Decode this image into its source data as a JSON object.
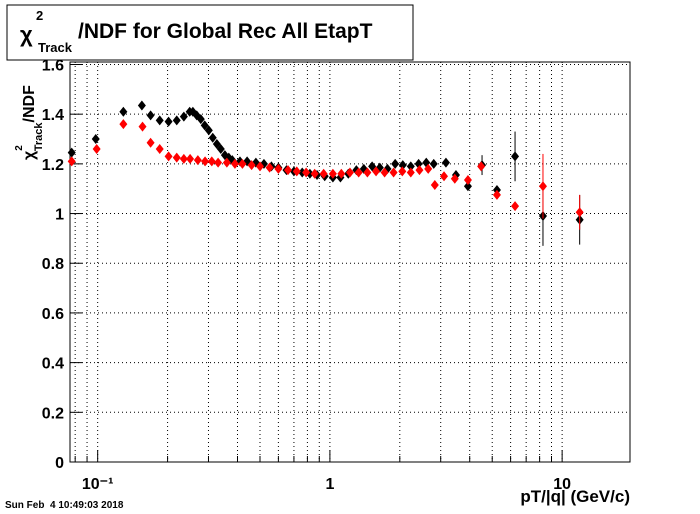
{
  "chart_data": {
    "type": "scatter",
    "title": {
      "symbol": "χ",
      "sup": "2",
      "sub": "Track",
      "text": "/NDF for Global Rec All EtapT"
    },
    "y_label": {
      "symbol": "χ",
      "sup": "2",
      "sub": "Track",
      "text": "/NDF"
    },
    "x_label": "pT/|q| (GeV/c)",
    "footer": "Sun Feb  4 10:49:03 2018",
    "log_x": true,
    "grid": true,
    "xlim": [
      0.076,
      19.6
    ],
    "ylim": [
      0,
      1.61
    ],
    "xticks": [
      {
        "value": 0.1,
        "label": "10⁻¹"
      },
      1,
      10
    ],
    "x_minor_ticks": [
      0.08,
      0.09,
      0.2,
      0.3,
      0.4,
      0.5,
      0.6,
      0.7,
      0.8,
      0.9,
      2,
      3,
      4,
      5,
      6,
      7,
      8,
      9
    ],
    "yticks": [
      0,
      0.2,
      0.4,
      0.6,
      0.8,
      1,
      1.2,
      1.4,
      1.6
    ],
    "series": [
      {
        "color": "#000000",
        "x": [
          0.0773,
          0.0981,
          0.129,
          0.155,
          0.169,
          0.185,
          0.202,
          0.219,
          0.235,
          0.249,
          0.257,
          0.267,
          0.278,
          0.289,
          0.301,
          0.313,
          0.326,
          0.339,
          0.353,
          0.367,
          0.38,
          0.41,
          0.44,
          0.48,
          0.52,
          0.56,
          0.6,
          0.65,
          0.7,
          0.76,
          0.82,
          0.88,
          0.95,
          1.03,
          1.11,
          1.2,
          1.3,
          1.4,
          1.52,
          1.64,
          1.77,
          1.91,
          2.06,
          2.23,
          2.41,
          2.6,
          2.8,
          3.16,
          3.49,
          3.93,
          4.52,
          5.24,
          6.27,
          8.27,
          11.9
        ],
        "values": [
          1.245,
          1.3,
          1.41,
          1.435,
          1.395,
          1.375,
          1.37,
          1.375,
          1.39,
          1.41,
          1.41,
          1.395,
          1.38,
          1.355,
          1.335,
          1.305,
          1.28,
          1.26,
          1.235,
          1.225,
          1.215,
          1.21,
          1.21,
          1.205,
          1.2,
          1.19,
          1.185,
          1.175,
          1.17,
          1.165,
          1.16,
          1.155,
          1.15,
          1.145,
          1.145,
          1.16,
          1.175,
          1.18,
          1.19,
          1.185,
          1.18,
          1.2,
          1.195,
          1.19,
          1.2,
          1.205,
          1.2,
          1.205,
          1.155,
          1.11,
          1.195,
          1.095,
          1.23,
          0.99,
          0.975
        ],
        "errors": [
          null,
          null,
          null,
          null,
          null,
          null,
          null,
          null,
          null,
          null,
          null,
          null,
          null,
          null,
          null,
          null,
          null,
          null,
          null,
          null,
          null,
          null,
          null,
          null,
          null,
          null,
          null,
          null,
          null,
          null,
          null,
          null,
          null,
          null,
          null,
          null,
          null,
          null,
          null,
          null,
          null,
          null,
          null,
          null,
          null,
          null,
          null,
          null,
          null,
          null,
          0.04,
          null,
          0.1,
          0.12,
          0.1
        ]
      },
      {
        "color": "#ff0000",
        "x": [
          0.0773,
          0.099,
          0.129,
          0.156,
          0.169,
          0.185,
          0.202,
          0.219,
          0.235,
          0.25,
          0.27,
          0.29,
          0.31,
          0.33,
          0.36,
          0.39,
          0.42,
          0.46,
          0.5,
          0.55,
          0.6,
          0.66,
          0.72,
          0.79,
          0.86,
          0.94,
          1.03,
          1.12,
          1.22,
          1.33,
          1.45,
          1.58,
          1.72,
          1.88,
          2.05,
          2.23,
          2.43,
          2.65,
          2.83,
          3.1,
          3.45,
          3.93,
          4.48,
          5.24,
          6.27,
          8.27,
          11.9
        ],
        "values": [
          1.21,
          1.26,
          1.36,
          1.35,
          1.285,
          1.26,
          1.23,
          1.225,
          1.22,
          1.22,
          1.215,
          1.21,
          1.21,
          1.205,
          1.205,
          1.2,
          1.2,
          1.195,
          1.19,
          1.185,
          1.18,
          1.175,
          1.17,
          1.165,
          1.16,
          1.16,
          1.16,
          1.16,
          1.165,
          1.165,
          1.165,
          1.17,
          1.165,
          1.165,
          1.17,
          1.165,
          1.175,
          1.18,
          1.115,
          1.15,
          1.14,
          1.135,
          1.19,
          1.075,
          1.03,
          1.11,
          1.005
        ],
        "errors": [
          null,
          null,
          null,
          null,
          null,
          null,
          null,
          null,
          null,
          null,
          null,
          null,
          null,
          null,
          null,
          null,
          null,
          null,
          null,
          null,
          null,
          null,
          null,
          null,
          null,
          null,
          null,
          null,
          null,
          null,
          null,
          null,
          null,
          null,
          null,
          null,
          null,
          null,
          null,
          null,
          null,
          null,
          null,
          null,
          null,
          0.13,
          0.07
        ]
      }
    ]
  }
}
